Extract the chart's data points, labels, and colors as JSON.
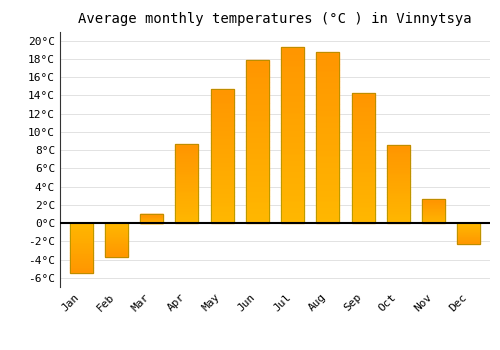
{
  "title": "Average monthly temperatures (°C ) in Vinnytsya",
  "months": [
    "Jan",
    "Feb",
    "Mar",
    "Apr",
    "May",
    "Jun",
    "Jul",
    "Aug",
    "Sep",
    "Oct",
    "Nov",
    "Dec"
  ],
  "values": [
    -5.5,
    -3.7,
    1.0,
    8.7,
    14.7,
    17.9,
    19.3,
    18.7,
    14.3,
    8.6,
    2.6,
    -2.3
  ],
  "bar_color_top": "#FFB700",
  "bar_color_bottom": "#FF9500",
  "bar_edge_color": "#888800",
  "background_color": "#FFFFFF",
  "plot_bg_color": "#FFFFFF",
  "grid_color": "#DDDDDD",
  "zero_line_color": "#000000",
  "ylim": [
    -7,
    21
  ],
  "yticks": [
    -6,
    -4,
    -2,
    0,
    2,
    4,
    6,
    8,
    10,
    12,
    14,
    16,
    18,
    20
  ],
  "title_fontsize": 10,
  "tick_fontsize": 8,
  "bar_width": 0.65
}
